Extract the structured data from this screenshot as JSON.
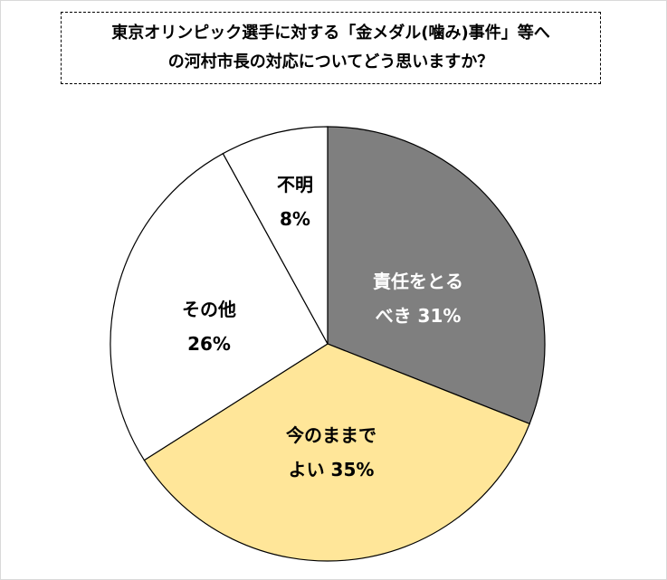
{
  "chart_data": {
    "type": "pie",
    "title_lines": [
      "東京オリンピック選手に対する「金メダル(噛み)事件」等へ",
      "の河村市長の対応についてどう思いますか？"
    ],
    "start_angle_deg": 0,
    "direction": "clockwise",
    "slices": [
      {
        "label_lines": [
          "責任をとる",
          "べき 31%"
        ],
        "value": 31,
        "color": "#7f7f7f",
        "text_color": "#ffffff"
      },
      {
        "label_lines": [
          "今のままで",
          "よい 35%"
        ],
        "value": 35,
        "color": "#ffe699",
        "text_color": "#000000"
      },
      {
        "label_lines": [
          "その他",
          "26%"
        ],
        "value": 26,
        "color": "#ffffff",
        "text_color": "#000000"
      },
      {
        "label_lines": [
          "不明",
          "8%"
        ],
        "value": 8,
        "color": "#ffffff",
        "text_color": "#000000"
      }
    ],
    "legend": "none"
  }
}
